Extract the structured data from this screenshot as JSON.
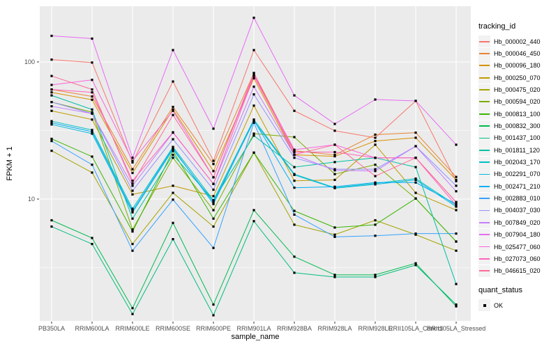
{
  "chart_data": {
    "type": "line",
    "xlabel": "sample_name",
    "ylabel": "FPKM + 1",
    "y_scale": "log10",
    "y_ticks": [
      100,
      10
    ],
    "y_minor_gridlines": [
      31.62,
      3.162
    ],
    "ylim": [
      1.29,
      255
    ],
    "grid": true,
    "legend_position": "right",
    "panel_bg": "#EBEBEB",
    "grid_color": "#FFFFFF",
    "point_color": "#000000",
    "axis_text_color": "#4D4D4D",
    "categories": [
      "PB350LA",
      "RRIM600LA",
      "RRIM600LE",
      "RRIM600SE",
      "RRIM600PE",
      "RRIM901LA",
      "RRIM928BA",
      "RRIM928LA",
      "RRIM928LE",
      "RRII105LA_Control",
      "RRII105LA_Stressed"
    ],
    "series": [
      {
        "name": "Hb_000002_440",
        "color": "#F8766D",
        "values": [
          104,
          99,
          18.5,
          72,
          19,
          122,
          44,
          31.5,
          28,
          52,
          13.5
        ]
      },
      {
        "name": "Hb_000046_450",
        "color": "#EA8331",
        "values": [
          63,
          56,
          16.5,
          47,
          18,
          83,
          22.5,
          21,
          29.5,
          30.5,
          14.5
        ]
      },
      {
        "name": "Hb_000096_180",
        "color": "#D89000",
        "values": [
          60,
          53,
          15.5,
          45,
          16,
          76,
          21,
          20.5,
          26.5,
          28,
          13.8
        ]
      },
      {
        "name": "Hb_000250_070",
        "color": "#C09B00",
        "values": [
          44,
          38,
          10.8,
          12.5,
          10.5,
          48,
          13.6,
          13.8,
          24.9,
          11.1,
          8.3
        ]
      },
      {
        "name": "Hb_000475_020",
        "color": "#A3A500",
        "values": [
          22.5,
          15.6,
          4.7,
          11.1,
          6.3,
          21.8,
          6.5,
          5.5,
          7.0,
          5.5,
          4.2
        ]
      },
      {
        "name": "Hb_000594_020",
        "color": "#7CAE00",
        "values": [
          51,
          43,
          6.0,
          20,
          8.3,
          30,
          28.3,
          15.2,
          17.8,
          10.1,
          4.9
        ]
      },
      {
        "name": "Hb_000813_100",
        "color": "#39B600",
        "values": [
          27.5,
          20.4,
          5.8,
          22.4,
          7.2,
          21.8,
          8.2,
          6.2,
          6.5,
          10.1,
          4.9
        ]
      },
      {
        "name": "Hb_000832_300",
        "color": "#00BB4E",
        "values": [
          7.0,
          5.2,
          1.6,
          6.7,
          1.7,
          8.3,
          3.8,
          2.8,
          2.8,
          3.4,
          1.65
        ]
      },
      {
        "name": "Hb_001437_100",
        "color": "#00BF7D",
        "values": [
          6.3,
          4.7,
          1.45,
          5.1,
          1.42,
          6.9,
          2.9,
          2.7,
          2.7,
          3.3,
          1.7
        ]
      },
      {
        "name": "Hb_001811_120",
        "color": "#00C1A3",
        "values": [
          57,
          45,
          7.2,
          21,
          9.8,
          29,
          17.1,
          18.6,
          20,
          17.1,
          2.4
        ]
      },
      {
        "name": "Hb_002043_170",
        "color": "#00BFC4",
        "values": [
          37,
          31.9,
          8.5,
          24,
          9.8,
          38,
          15.2,
          12.1,
          13.0,
          14.1,
          9.0
        ]
      },
      {
        "name": "Hb_002291_070",
        "color": "#00BAE0",
        "values": [
          35,
          30,
          8.0,
          23,
          9.5,
          37,
          15.0,
          12.0,
          12.8,
          13.8,
          8.8
        ]
      },
      {
        "name": "Hb_002471_210",
        "color": "#00B0F6",
        "values": [
          36,
          31,
          8.2,
          23.5,
          9.2,
          37.5,
          12.1,
          12.3,
          13.2,
          13.2,
          9.2
        ]
      },
      {
        "name": "Hb_002883_010",
        "color": "#35A2FF",
        "values": [
          26.5,
          17.8,
          4.2,
          9.9,
          4.4,
          36,
          7.7,
          5.3,
          5.4,
          5.6,
          5.6
        ]
      },
      {
        "name": "Hb_004037_030",
        "color": "#9590FF",
        "values": [
          51,
          42,
          11.5,
          27.3,
          11.7,
          58,
          20,
          16.5,
          16.5,
          24.3,
          12.5
        ]
      },
      {
        "name": "Hb_007849_020",
        "color": "#C77CFF",
        "values": [
          47.5,
          42,
          12.5,
          30.5,
          12.9,
          66,
          21,
          16.2,
          16,
          24.3,
          11.4
        ]
      },
      {
        "name": "Hb_007904_180",
        "color": "#E76BF3",
        "values": [
          155,
          148,
          20,
          122,
          32.6,
          210,
          57,
          35.3,
          53.2,
          52,
          24.9
        ]
      },
      {
        "name": "Hb_025477_060",
        "color": "#FA62DB",
        "values": [
          68,
          74,
          19,
          44,
          14.4,
          80,
          22.9,
          24.9,
          20,
          20,
          9.5
        ]
      },
      {
        "name": "Hb_027073_060",
        "color": "#FF62BC",
        "values": [
          63,
          60,
          13.6,
          30.7,
          12.9,
          79,
          22,
          22,
          20,
          20,
          9.0
        ]
      },
      {
        "name": "Hb_046615_020",
        "color": "#FF6A98",
        "values": [
          79,
          63,
          13,
          41,
          14.4,
          83,
          21.1,
          24.9,
          14.7,
          20,
          9.5
        ]
      }
    ]
  },
  "legend": {
    "tracking_title": "tracking_id",
    "quant_title": "quant_status",
    "quant_items": [
      {
        "label": "OK",
        "marker": "black-square"
      }
    ]
  }
}
